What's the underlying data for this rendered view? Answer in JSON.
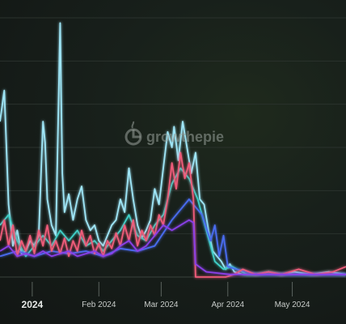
{
  "watermark": {
    "brand_text": "growthepie"
  },
  "colors": {
    "background": "#151a18",
    "gridline": "#2a322d",
    "axis": "#3a423d"
  },
  "chart_data": {
    "type": "line",
    "x_type": "date",
    "x_ticks": [
      {
        "date": "2024-01-01",
        "label": "2024",
        "bold": true
      },
      {
        "date": "2024-02-01",
        "label": "Feb 2024",
        "bold": false
      },
      {
        "date": "2024-03-01",
        "label": "Mar 2024",
        "bold": false
      },
      {
        "date": "2024-04-01",
        "label": "Apr 2024",
        "bold": false
      },
      {
        "date": "2024-05-01",
        "label": "May 2024",
        "bold": false
      }
    ],
    "gridlines_y": 6,
    "ylim": [
      0,
      100
    ],
    "xlim": [
      "2023-12-17",
      "2024-05-26"
    ],
    "series": [
      {
        "color": "#9fe6f7",
        "points": [
          [
            "2023-12-17",
            60
          ],
          [
            "2023-12-19",
            72
          ],
          [
            "2023-12-21",
            28
          ],
          [
            "2023-12-23",
            12
          ],
          [
            "2023-12-25",
            18
          ],
          [
            "2023-12-27",
            9
          ],
          [
            "2023-12-29",
            10
          ],
          [
            "2023-12-31",
            14
          ],
          [
            "2024-01-02",
            12
          ],
          [
            "2024-01-04",
            16
          ],
          [
            "2024-01-06",
            60
          ],
          [
            "2024-01-07",
            52
          ],
          [
            "2024-01-08",
            30
          ],
          [
            "2024-01-10",
            20
          ],
          [
            "2024-01-12",
            16
          ],
          [
            "2024-01-14",
            98
          ],
          [
            "2024-01-15",
            40
          ],
          [
            "2024-01-16",
            25
          ],
          [
            "2024-01-18",
            32
          ],
          [
            "2024-01-20",
            22
          ],
          [
            "2024-01-22",
            30
          ],
          [
            "2024-01-24",
            35
          ],
          [
            "2024-01-26",
            22
          ],
          [
            "2024-01-28",
            18
          ],
          [
            "2024-01-30",
            20
          ],
          [
            "2024-02-01",
            14
          ],
          [
            "2024-02-03",
            12
          ],
          [
            "2024-02-05",
            16
          ],
          [
            "2024-02-07",
            20
          ],
          [
            "2024-02-09",
            22
          ],
          [
            "2024-02-11",
            30
          ],
          [
            "2024-02-13",
            25
          ],
          [
            "2024-02-15",
            42
          ],
          [
            "2024-02-17",
            30
          ],
          [
            "2024-02-19",
            20
          ],
          [
            "2024-02-21",
            15
          ],
          [
            "2024-02-23",
            18
          ],
          [
            "2024-02-25",
            22
          ],
          [
            "2024-02-27",
            34
          ],
          [
            "2024-02-29",
            28
          ],
          [
            "2024-03-02",
            42
          ],
          [
            "2024-03-04",
            56
          ],
          [
            "2024-03-06",
            50
          ],
          [
            "2024-03-07",
            58
          ],
          [
            "2024-03-09",
            45
          ],
          [
            "2024-03-11",
            60
          ],
          [
            "2024-03-13",
            50
          ],
          [
            "2024-03-15",
            40
          ],
          [
            "2024-03-17",
            48
          ],
          [
            "2024-03-19",
            30
          ],
          [
            "2024-03-21",
            28
          ],
          [
            "2024-03-23",
            18
          ],
          [
            "2024-03-25",
            10
          ],
          [
            "2024-03-27",
            8
          ],
          [
            "2024-03-29",
            6
          ],
          [
            "2024-03-31",
            3
          ],
          [
            "2024-04-02",
            5
          ],
          [
            "2024-04-04",
            2
          ],
          [
            "2024-04-08",
            1
          ],
          [
            "2024-04-14",
            1
          ],
          [
            "2024-04-20",
            2
          ],
          [
            "2024-04-26",
            1
          ],
          [
            "2024-05-02",
            2
          ],
          [
            "2024-05-10",
            1
          ],
          [
            "2024-05-18",
            2
          ],
          [
            "2024-05-26",
            1
          ]
        ]
      },
      {
        "color": "#3fd0c8",
        "points": [
          [
            "2023-12-17",
            20
          ],
          [
            "2023-12-21",
            24
          ],
          [
            "2023-12-25",
            14
          ],
          [
            "2023-12-29",
            8
          ],
          [
            "2024-01-02",
            12
          ],
          [
            "2024-01-06",
            16
          ],
          [
            "2024-01-10",
            12
          ],
          [
            "2024-01-14",
            18
          ],
          [
            "2024-01-18",
            14
          ],
          [
            "2024-01-22",
            18
          ],
          [
            "2024-01-26",
            12
          ],
          [
            "2024-01-30",
            14
          ],
          [
            "2024-02-03",
            10
          ],
          [
            "2024-02-07",
            14
          ],
          [
            "2024-02-11",
            18
          ],
          [
            "2024-02-15",
            24
          ],
          [
            "2024-02-19",
            16
          ],
          [
            "2024-02-23",
            14
          ],
          [
            "2024-02-27",
            20
          ],
          [
            "2024-03-02",
            24
          ],
          [
            "2024-03-06",
            36
          ],
          [
            "2024-03-10",
            42
          ],
          [
            "2024-03-14",
            38
          ],
          [
            "2024-03-18",
            30
          ],
          [
            "2024-03-22",
            18
          ],
          [
            "2024-03-26",
            6
          ],
          [
            "2024-03-30",
            3
          ],
          [
            "2024-04-03",
            4
          ],
          [
            "2024-04-10",
            1
          ],
          [
            "2024-04-20",
            1
          ],
          [
            "2024-05-26",
            1
          ]
        ]
      },
      {
        "color": "#4a6cf0",
        "points": [
          [
            "2023-12-17",
            8
          ],
          [
            "2023-12-25",
            10
          ],
          [
            "2024-01-02",
            8
          ],
          [
            "2024-01-10",
            10
          ],
          [
            "2024-01-18",
            9
          ],
          [
            "2024-01-26",
            10
          ],
          [
            "2024-02-03",
            8
          ],
          [
            "2024-02-11",
            11
          ],
          [
            "2024-02-19",
            10
          ],
          [
            "2024-02-27",
            12
          ],
          [
            "2024-03-06",
            22
          ],
          [
            "2024-03-14",
            30
          ],
          [
            "2024-03-20",
            24
          ],
          [
            "2024-03-24",
            14
          ],
          [
            "2024-03-26",
            20
          ],
          [
            "2024-03-28",
            8
          ],
          [
            "2024-03-30",
            16
          ],
          [
            "2024-04-01",
            4
          ],
          [
            "2024-04-05",
            3
          ],
          [
            "2024-04-15",
            1
          ],
          [
            "2024-05-26",
            1
          ]
        ]
      },
      {
        "color": "#ef5c7a",
        "points": [
          [
            "2023-12-17",
            14
          ],
          [
            "2023-12-19",
            22
          ],
          [
            "2023-12-21",
            12
          ],
          [
            "2023-12-23",
            20
          ],
          [
            "2023-12-25",
            8
          ],
          [
            "2023-12-27",
            14
          ],
          [
            "2023-12-29",
            10
          ],
          [
            "2023-12-31",
            16
          ],
          [
            "2024-01-02",
            9
          ],
          [
            "2024-01-04",
            18
          ],
          [
            "2024-01-06",
            12
          ],
          [
            "2024-01-08",
            20
          ],
          [
            "2024-01-10",
            10
          ],
          [
            "2024-01-12",
            14
          ],
          [
            "2024-01-14",
            9
          ],
          [
            "2024-01-16",
            15
          ],
          [
            "2024-01-18",
            8
          ],
          [
            "2024-01-20",
            14
          ],
          [
            "2024-01-22",
            10
          ],
          [
            "2024-01-24",
            18
          ],
          [
            "2024-01-26",
            12
          ],
          [
            "2024-01-28",
            16
          ],
          [
            "2024-01-30",
            9
          ],
          [
            "2024-02-01",
            13
          ],
          [
            "2024-02-03",
            8
          ],
          [
            "2024-02-05",
            14
          ],
          [
            "2024-02-07",
            11
          ],
          [
            "2024-02-09",
            17
          ],
          [
            "2024-02-11",
            12
          ],
          [
            "2024-02-13",
            20
          ],
          [
            "2024-02-15",
            14
          ],
          [
            "2024-02-17",
            22
          ],
          [
            "2024-02-19",
            12
          ],
          [
            "2024-02-21",
            18
          ],
          [
            "2024-02-23",
            14
          ],
          [
            "2024-02-25",
            20
          ],
          [
            "2024-02-27",
            16
          ],
          [
            "2024-02-29",
            24
          ],
          [
            "2024-03-02",
            20
          ],
          [
            "2024-03-04",
            30
          ],
          [
            "2024-03-06",
            44
          ],
          [
            "2024-03-08",
            34
          ],
          [
            "2024-03-10",
            48
          ],
          [
            "2024-03-12",
            38
          ],
          [
            "2024-03-14",
            44
          ],
          [
            "2024-03-16",
            30
          ],
          [
            "2024-03-17",
            0
          ],
          [
            "2024-03-31",
            0
          ],
          [
            "2024-04-04",
            1
          ],
          [
            "2024-04-08",
            3
          ],
          [
            "2024-04-14",
            1
          ],
          [
            "2024-04-20",
            2
          ],
          [
            "2024-04-26",
            1
          ],
          [
            "2024-05-04",
            3
          ],
          [
            "2024-05-12",
            1
          ],
          [
            "2024-05-20",
            2
          ],
          [
            "2024-05-26",
            4
          ]
        ]
      },
      {
        "color": "#8a3fe8",
        "points": [
          [
            "2023-12-17",
            10
          ],
          [
            "2023-12-21",
            12
          ],
          [
            "2023-12-25",
            8
          ],
          [
            "2023-12-29",
            9
          ],
          [
            "2024-01-02",
            8
          ],
          [
            "2024-01-06",
            10
          ],
          [
            "2024-01-10",
            8
          ],
          [
            "2024-01-14",
            9
          ],
          [
            "2024-01-18",
            10
          ],
          [
            "2024-01-22",
            8
          ],
          [
            "2024-01-26",
            9
          ],
          [
            "2024-01-30",
            10
          ],
          [
            "2024-02-03",
            8
          ],
          [
            "2024-02-07",
            9
          ],
          [
            "2024-02-11",
            12
          ],
          [
            "2024-02-15",
            14
          ],
          [
            "2024-02-19",
            10
          ],
          [
            "2024-02-23",
            12
          ],
          [
            "2024-02-27",
            16
          ],
          [
            "2024-03-02",
            20
          ],
          [
            "2024-03-06",
            18
          ],
          [
            "2024-03-10",
            20
          ],
          [
            "2024-03-14",
            22
          ],
          [
            "2024-03-16",
            21
          ],
          [
            "2024-03-17",
            5
          ],
          [
            "2024-03-22",
            2
          ],
          [
            "2024-04-02",
            1
          ],
          [
            "2024-05-26",
            1
          ]
        ]
      }
    ]
  }
}
